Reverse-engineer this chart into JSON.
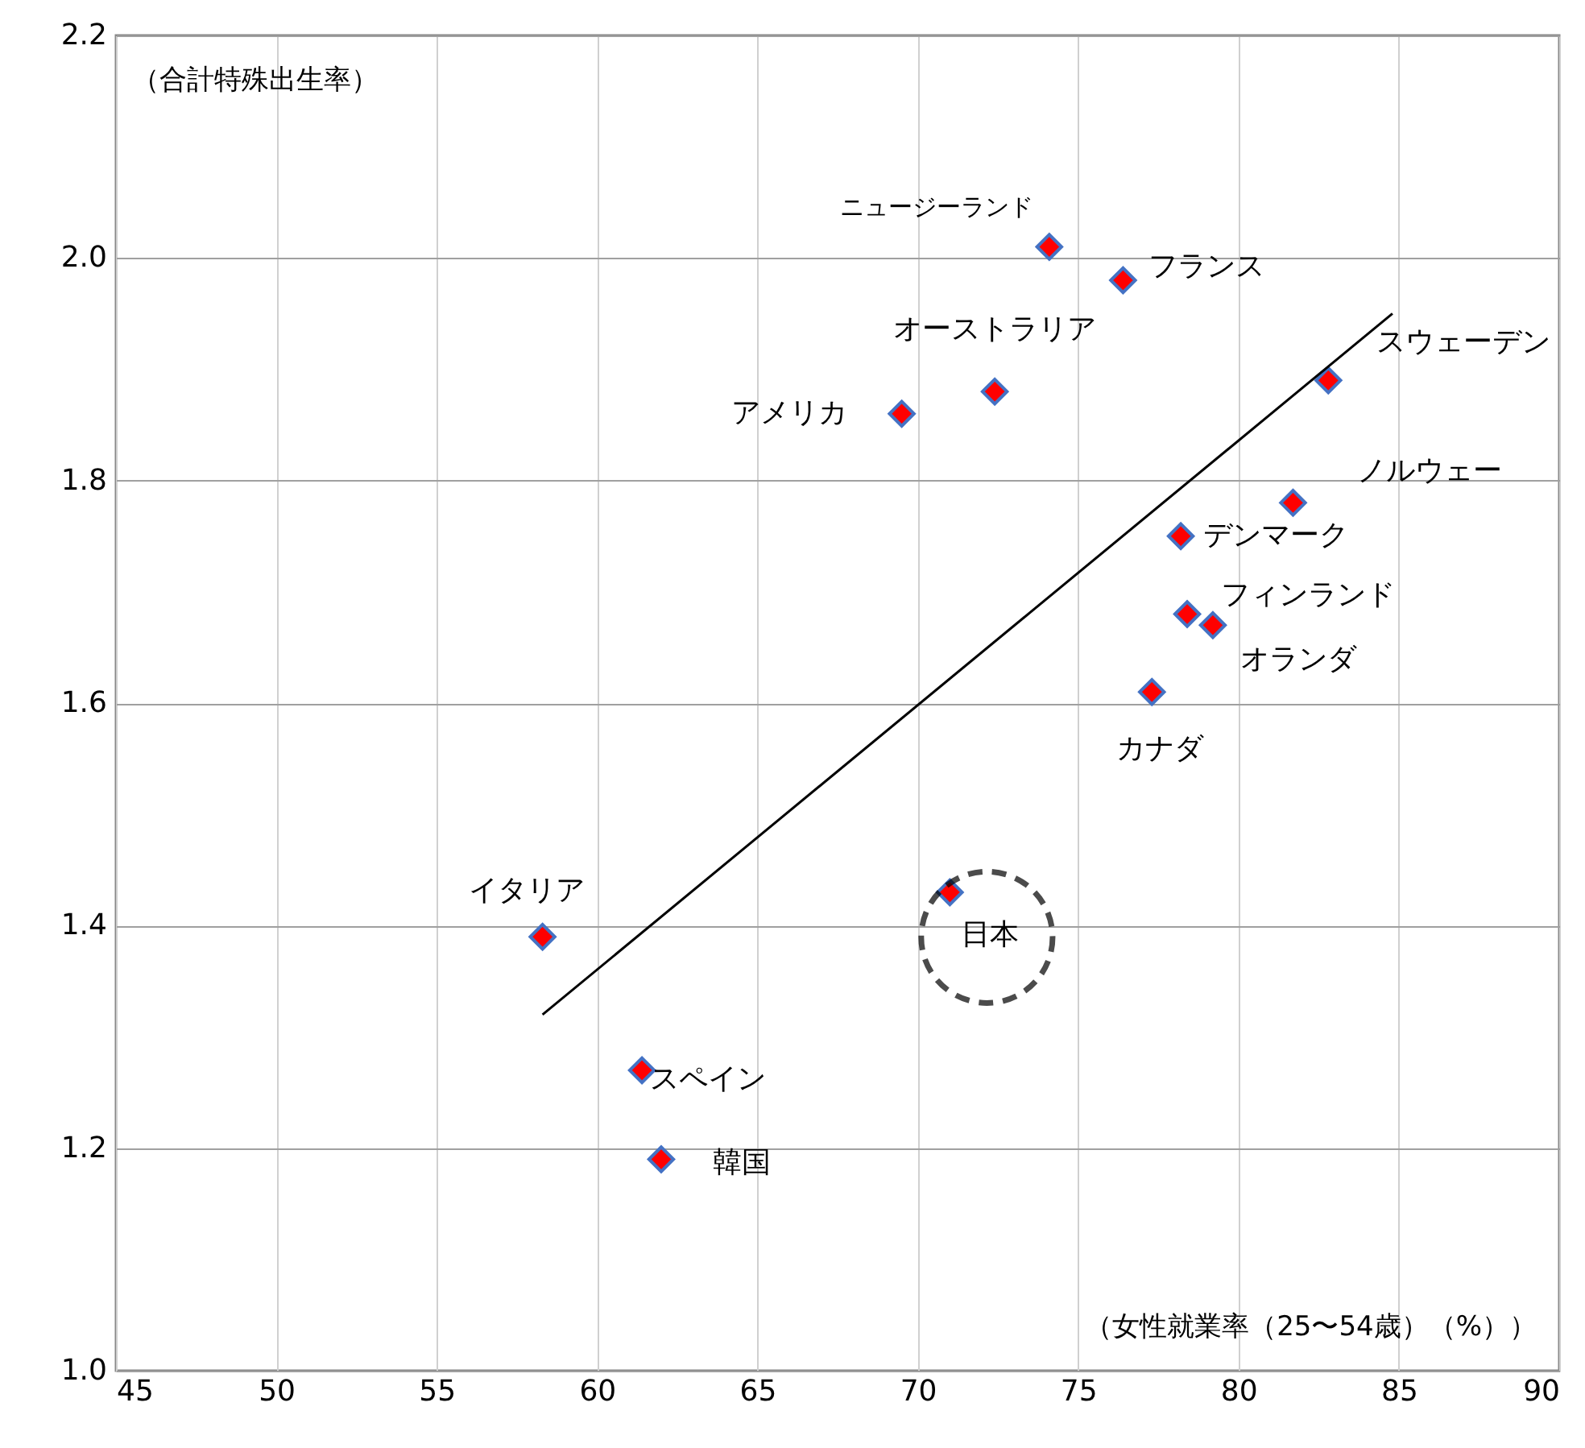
{
  "chart_data": {
    "type": "scatter",
    "ylabel": "（合計特殊出生率）",
    "xlabel": "（女性就業率（25〜54歳）（%））",
    "xlim": [
      45,
      90
    ],
    "xticks": [
      45,
      50,
      55,
      60,
      65,
      70,
      75,
      80,
      85,
      90
    ],
    "ylim": [
      1.0,
      2.2
    ],
    "yticks": [
      {
        "value": 1.0,
        "label": "1.0"
      },
      {
        "value": 1.2,
        "label": "1.2"
      },
      {
        "value": 1.4,
        "label": "1.4"
      },
      {
        "value": 1.6,
        "label": "1.6"
      },
      {
        "value": 1.8,
        "label": "1.8"
      },
      {
        "value": 2.0,
        "label": "2.0"
      },
      {
        "value": 2.2,
        "label": "2.2"
      }
    ],
    "grid": true,
    "marker": "diamond",
    "series": [
      {
        "color": "#ff0000",
        "x": [
          74.1,
          76.4,
          72.4,
          69.5,
          82.8,
          81.7,
          78.2,
          78.4,
          79.2,
          77.3,
          58.3,
          71.0,
          61.4,
          62.0
        ],
        "values": [
          2.01,
          1.98,
          1.88,
          1.86,
          1.89,
          1.78,
          1.75,
          1.68,
          1.67,
          1.61,
          1.39,
          1.43,
          1.27,
          1.19
        ]
      },
      {
        "type": "line",
        "marker": "none",
        "color": "#000000",
        "x": [
          58.3,
          84.8
        ],
        "values": [
          1.32,
          1.95
        ]
      }
    ],
    "annotations": [
      {
        "text": "ニュージーランド",
        "x": 74.1,
        "y": 2.01
      },
      {
        "text": "フランス",
        "x": 76.4,
        "y": 1.98
      },
      {
        "text": "オーストラリア",
        "x": 72.4,
        "y": 1.88
      },
      {
        "text": "アメリカ",
        "x": 69.5,
        "y": 1.86
      },
      {
        "text": "スウェーデン",
        "x": 82.8,
        "y": 1.89
      },
      {
        "text": "ノルウェー",
        "x": 81.7,
        "y": 1.78
      },
      {
        "text": "デンマーク",
        "x": 78.2,
        "y": 1.75
      },
      {
        "text": "フィンランド",
        "x": 78.4,
        "y": 1.68
      },
      {
        "text": "オランダ",
        "x": 79.2,
        "y": 1.67
      },
      {
        "text": "カナダ",
        "x": 77.3,
        "y": 1.61
      },
      {
        "text": "イタリア",
        "x": 58.3,
        "y": 1.39
      },
      {
        "text": "日本",
        "x": 71.0,
        "y": 1.43
      },
      {
        "text": "スペイン",
        "x": 61.4,
        "y": 1.27
      },
      {
        "text": "韓国",
        "x": 62.0,
        "y": 1.19
      }
    ]
  }
}
